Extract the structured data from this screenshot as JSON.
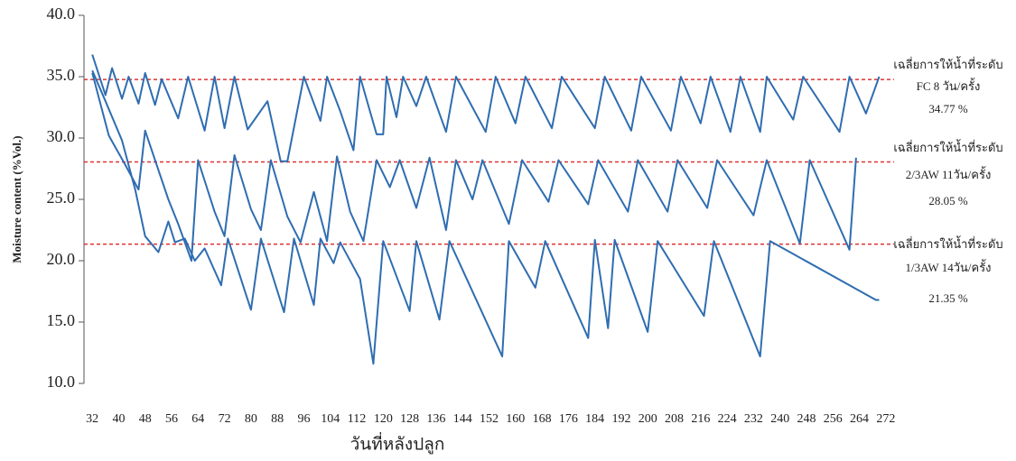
{
  "chart_data": {
    "type": "line",
    "y_label": "Moisture content (%Vol.)",
    "x_label": "วันที่หลังปลูก",
    "xlim": [
      29.5,
      274.5
    ],
    "xticks": [
      32,
      40,
      48,
      56,
      64,
      72,
      80,
      88,
      96,
      104,
      112,
      120,
      128,
      136,
      144,
      152,
      160,
      168,
      176,
      184,
      192,
      200,
      208,
      216,
      224,
      232,
      240,
      248,
      256,
      264,
      272
    ],
    "ylim": [
      10,
      40
    ],
    "yticks": [
      {
        "value": 10,
        "label": "10.0"
      },
      {
        "value": 15,
        "label": "15.0"
      },
      {
        "value": 20,
        "label": "20.0"
      },
      {
        "value": 25,
        "label": "25.0"
      },
      {
        "value": 30,
        "label": "30.0"
      },
      {
        "value": 35,
        "label": "35.0"
      },
      {
        "value": 40,
        "label": "40.0"
      }
    ],
    "series": [
      {
        "color": "#2f6db0",
        "x": [
          32,
          36,
          38,
          41,
          43,
          46,
          48,
          51,
          53,
          58,
          61,
          66,
          69,
          72,
          75,
          79,
          85,
          89,
          91,
          96,
          101,
          103,
          107,
          111,
          113,
          118,
          120,
          121,
          124,
          126,
          130,
          133,
          139,
          142,
          151,
          154,
          160,
          163,
          171,
          174,
          184,
          187,
          195,
          198,
          207,
          210,
          216,
          219,
          225,
          228,
          234,
          236,
          244,
          247,
          258,
          261,
          266,
          270
        ],
        "values": [
          36.8,
          33.5,
          35.7,
          33.2,
          35.0,
          32.8,
          35.3,
          32.7,
          34.8,
          31.6,
          35.0,
          30.6,
          35.0,
          30.8,
          35.0,
          30.7,
          33.0,
          28.1,
          28.1,
          35.0,
          31.4,
          35.0,
          32.2,
          29.0,
          35.0,
          30.3,
          30.3,
          35.0,
          31.7,
          35.0,
          32.6,
          35.0,
          30.5,
          35.0,
          30.5,
          35.0,
          31.2,
          35.0,
          30.8,
          35.0,
          30.8,
          35.0,
          30.6,
          35.0,
          30.6,
          35.0,
          31.2,
          35.0,
          30.5,
          35.0,
          30.5,
          35.0,
          31.5,
          35.0,
          30.5,
          35.0,
          32.0,
          35.0
        ]
      },
      {
        "color": "#2f6db0",
        "x": [
          32,
          37,
          42,
          46,
          48,
          52,
          55,
          58,
          62,
          64,
          69,
          72,
          75,
          80,
          83,
          86,
          91,
          95,
          99,
          103,
          106,
          110,
          114,
          118,
          122,
          125,
          130,
          134,
          139,
          142,
          147,
          150,
          158,
          162,
          170,
          173,
          182,
          185,
          194,
          197,
          206,
          209,
          218,
          221,
          232,
          236,
          246,
          249,
          261,
          263
        ],
        "values": [
          35.3,
          30.2,
          27.8,
          25.8,
          30.6,
          27.4,
          25.0,
          23.0,
          20.0,
          28.2,
          24.0,
          22.0,
          28.6,
          24.2,
          22.5,
          28.2,
          23.6,
          21.5,
          25.6,
          21.6,
          28.5,
          24.0,
          21.6,
          28.2,
          26.0,
          28.2,
          24.3,
          28.4,
          22.5,
          28.2,
          25.0,
          28.2,
          23.0,
          28.2,
          24.8,
          28.2,
          24.6,
          28.2,
          24.0,
          28.2,
          24.0,
          28.2,
          24.3,
          28.2,
          23.7,
          28.2,
          21.4,
          28.2,
          20.9,
          28.4
        ]
      },
      {
        "color": "#2f6db0",
        "x": [
          32,
          36,
          41,
          45,
          48,
          52,
          55,
          57,
          60,
          63,
          66,
          71,
          73,
          80,
          83,
          90,
          93,
          99,
          101,
          105,
          107,
          113,
          117,
          120,
          128,
          130,
          137,
          140,
          156,
          158,
          166,
          169,
          182,
          184,
          188,
          190,
          200,
          203,
          217,
          220,
          234,
          237,
          269,
          270
        ],
        "values": [
          35.5,
          33.0,
          29.8,
          25.8,
          22.0,
          20.7,
          23.2,
          21.5,
          21.8,
          20.0,
          21.0,
          18.0,
          21.8,
          16.0,
          21.8,
          15.8,
          21.8,
          16.4,
          21.8,
          19.8,
          21.5,
          18.5,
          11.6,
          21.6,
          15.9,
          21.6,
          15.2,
          21.6,
          12.2,
          21.6,
          17.8,
          21.6,
          13.7,
          21.7,
          14.5,
          21.7,
          14.2,
          21.6,
          15.5,
          21.6,
          12.2,
          21.6,
          16.8,
          16.8
        ]
      }
    ],
    "reference_lines": [
      {
        "value": 34.77,
        "color": "#d33",
        "text": [
          "เฉลี่ยการให้น้ำที่ระดับ",
          "FC 8 วัน/ครั้ง",
          "34.77 %"
        ]
      },
      {
        "value": 28.05,
        "color": "#d33",
        "text": [
          "เฉลี่ยการให้น้ำที่ระดับ",
          "2/3AW  11วัน/ครั้ง",
          "28.05 %"
        ]
      },
      {
        "value": 21.35,
        "color": "#d33",
        "text": [
          "เฉลี่ยการให้น้ำที่ระดับ",
          "1/3AW  14วัน/ครั้ง",
          "21.35 %"
        ]
      }
    ]
  }
}
